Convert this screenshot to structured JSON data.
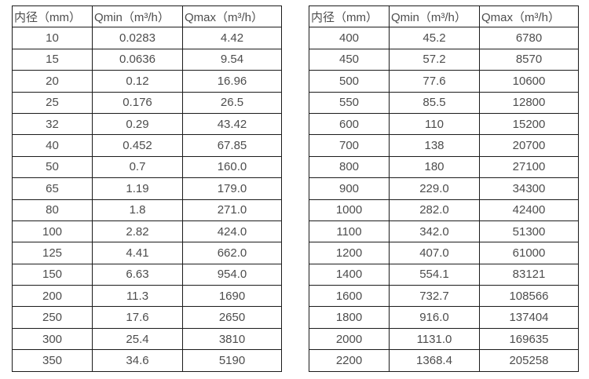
{
  "colors": {
    "background": "#ffffff",
    "border": "#1b1b1b",
    "text": "#4d4d4d"
  },
  "tables": [
    {
      "headers": [
        "内径（mm）",
        "Qmin（m³/h）",
        "Qmax（m³/h）"
      ],
      "rows": [
        [
          "10",
          "0.0283",
          "4.42"
        ],
        [
          "15",
          "0.0636",
          "9.54"
        ],
        [
          "20",
          "0.12",
          "16.96"
        ],
        [
          "25",
          "0.176",
          "26.5"
        ],
        [
          "32",
          "0.29",
          "43.42"
        ],
        [
          "40",
          "0.452",
          "67.85"
        ],
        [
          "50",
          "0.7",
          "160.0"
        ],
        [
          "65",
          "1.19",
          "179.0"
        ],
        [
          "80",
          "1.8",
          "271.0"
        ],
        [
          "100",
          "2.82",
          "424.0"
        ],
        [
          "125",
          "4.41",
          "662.0"
        ],
        [
          "150",
          "6.63",
          "954.0"
        ],
        [
          "200",
          "11.3",
          "1690"
        ],
        [
          "250",
          "17.6",
          "2650"
        ],
        [
          "300",
          "25.4",
          "3810"
        ],
        [
          "350",
          "34.6",
          "5190"
        ]
      ]
    },
    {
      "headers": [
        "内径（mm）",
        "Qmin（m³/h）",
        "Qmax（m³/h）"
      ],
      "rows": [
        [
          "400",
          "45.2",
          "6780"
        ],
        [
          "450",
          "57.2",
          "8570"
        ],
        [
          "500",
          "77.6",
          "10600"
        ],
        [
          "550",
          "85.5",
          "12800"
        ],
        [
          "600",
          "110",
          "15200"
        ],
        [
          "700",
          "138",
          "20700"
        ],
        [
          "800",
          "180",
          "27100"
        ],
        [
          "900",
          "229.0",
          "34300"
        ],
        [
          "1000",
          "282.0",
          "42400"
        ],
        [
          "1100",
          "342.0",
          "51300"
        ],
        [
          "1200",
          "407.0",
          "61000"
        ],
        [
          "1400",
          "554.1",
          "83121"
        ],
        [
          "1600",
          "732.7",
          "108566"
        ],
        [
          "1800",
          "916.0",
          "137404"
        ],
        [
          "2000",
          "1131.0",
          "169635"
        ],
        [
          "2200",
          "1368.4",
          "205258"
        ]
      ]
    }
  ]
}
